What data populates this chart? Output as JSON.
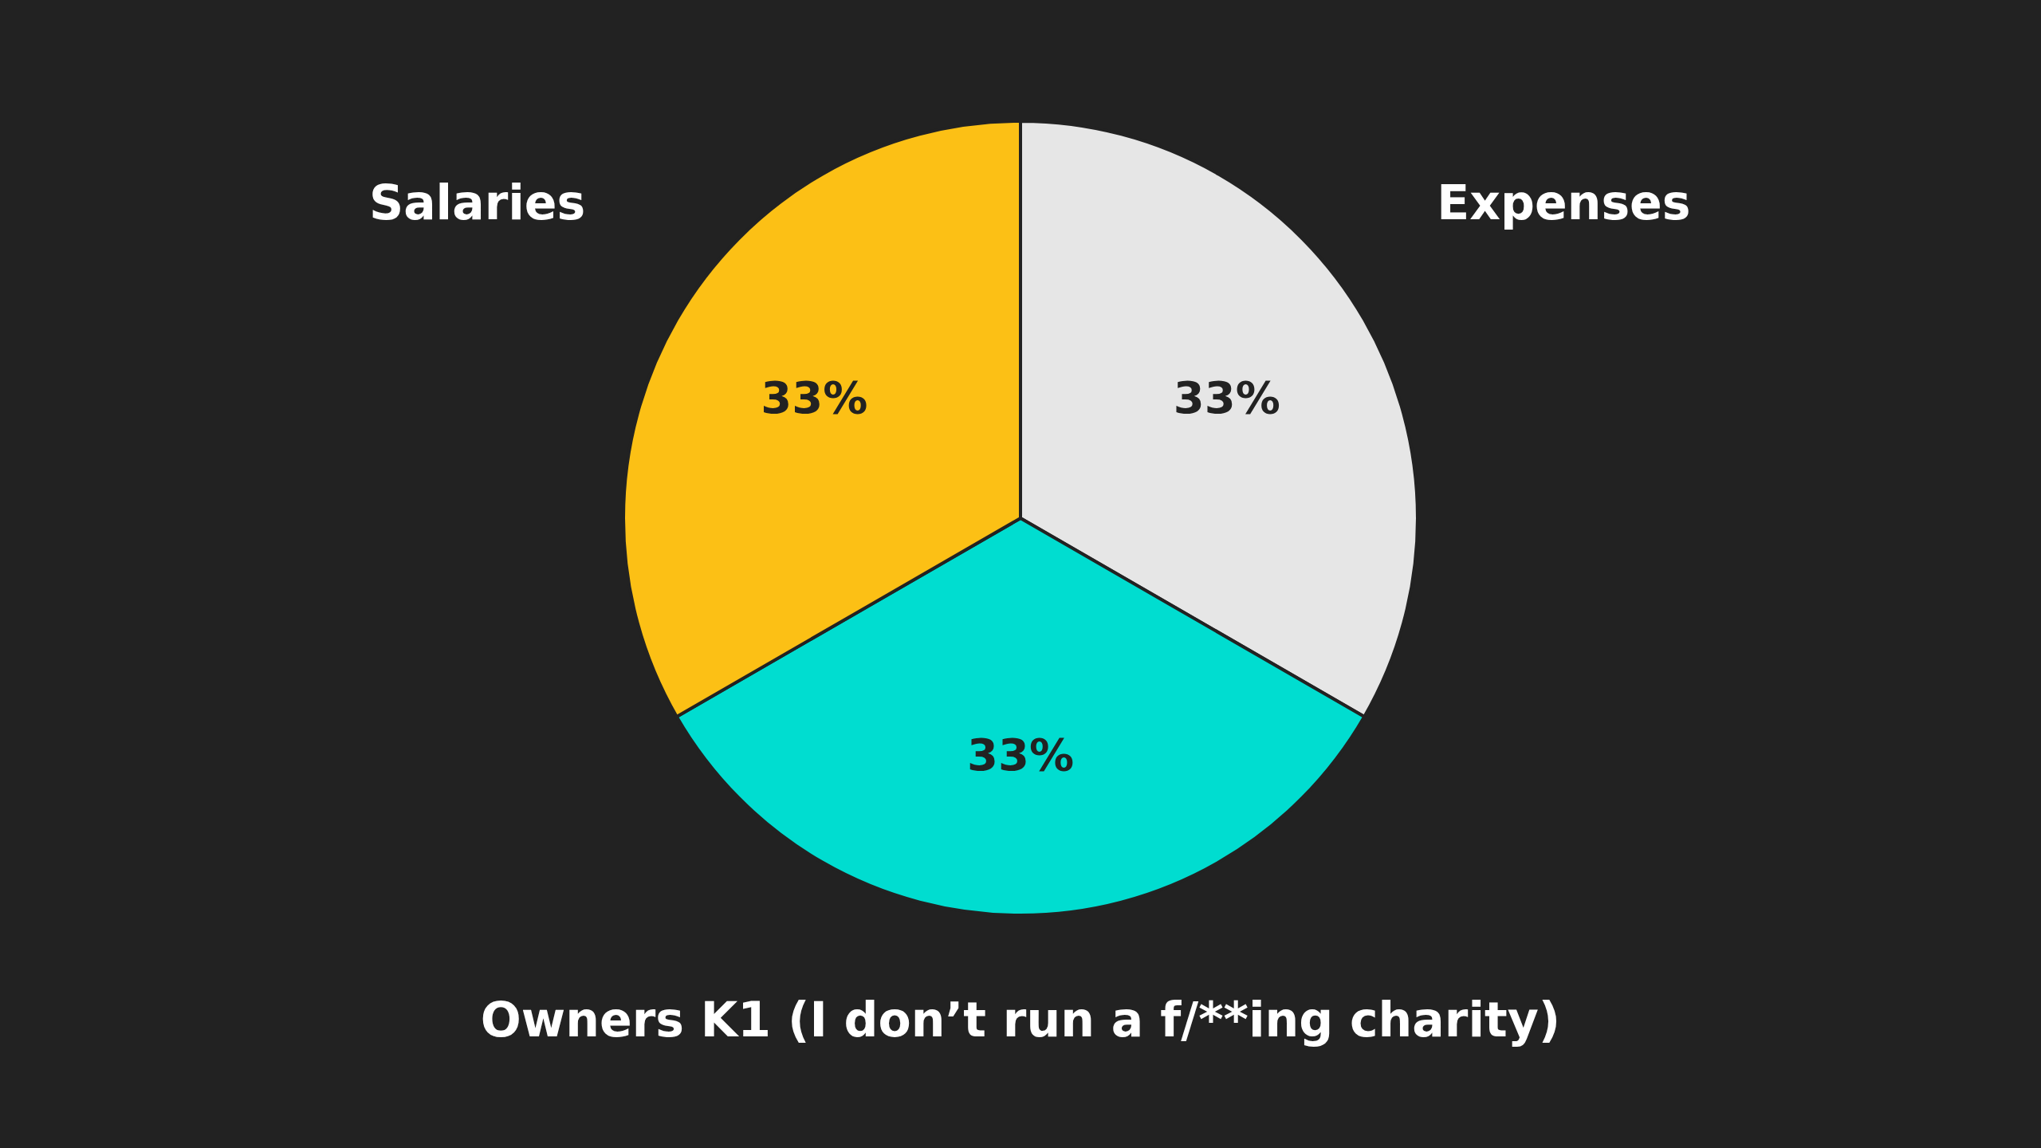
{
  "chart_data": {
    "type": "pie",
    "categories": [
      "Expenses",
      "Owners K1 (I don’t run a f/**ing charity)",
      "Salaries"
    ],
    "values": [
      33,
      33,
      33
    ],
    "value_labels": [
      "33%",
      "33%",
      "33%"
    ],
    "colors": [
      "#e6e6e6",
      "#00ddd0",
      "#fcc015"
    ]
  }
}
